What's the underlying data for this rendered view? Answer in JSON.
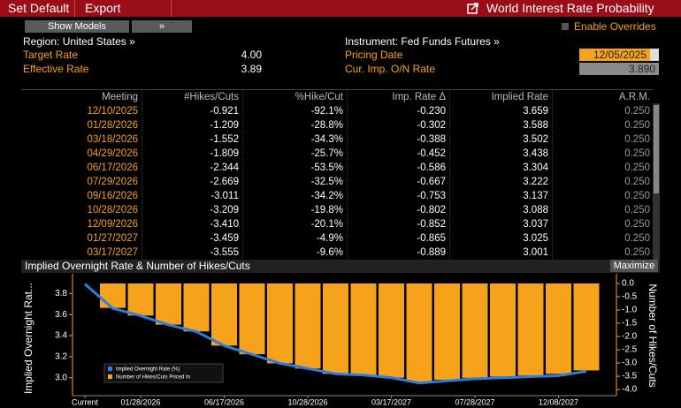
{
  "toolbar": {
    "set_default": "Set Default",
    "export": "Export",
    "title": "World Interest Rate Probability"
  },
  "controls": {
    "show_models": "Show Models",
    "expand": "»",
    "enable_overrides": "Enable Overrides"
  },
  "info": {
    "region": "Region: United States »",
    "target_rate_label": "Target Rate",
    "target_rate": "4.00",
    "effective_rate_label": "Effective Rate",
    "effective_rate": "3.89",
    "instrument": "Instrument: Fed Funds Futures »",
    "pricing_date_label": "Pricing Date",
    "pricing_date": "12/05/2025",
    "cur_imp_label": "Cur. Imp. O/N Rate",
    "cur_imp": "3.890"
  },
  "table": {
    "columns": [
      "Meeting",
      "#Hikes/Cuts",
      "%Hike/Cut",
      "Imp. Rate Δ",
      "Implied Rate",
      "A.R.M."
    ],
    "rows": [
      [
        "12/10/2025",
        "-0.921",
        "-92.1%",
        "-0.230",
        "3.659",
        "0.250"
      ],
      [
        "01/28/2026",
        "-1.209",
        "-28.8%",
        "-0.302",
        "3.588",
        "0.250"
      ],
      [
        "03/18/2026",
        "-1.552",
        "-34.3%",
        "-0.388",
        "3.502",
        "0.250"
      ],
      [
        "04/29/2026",
        "-1.809",
        "-25.7%",
        "-0.452",
        "3.438",
        "0.250"
      ],
      [
        "06/17/2026",
        "-2.344",
        "-53.5%",
        "-0.586",
        "3.304",
        "0.250"
      ],
      [
        "07/29/2026",
        "-2.669",
        "-32.5%",
        "-0.667",
        "3.222",
        "0.250"
      ],
      [
        "09/16/2026",
        "-3.011",
        "-34.2%",
        "-0.753",
        "3.137",
        "0.250"
      ],
      [
        "10/28/2026",
        "-3.209",
        "-19.8%",
        "-0.802",
        "3.088",
        "0.250"
      ],
      [
        "12/09/2026",
        "-3.410",
        "-20.1%",
        "-0.852",
        "3.037",
        "0.250"
      ],
      [
        "01/27/2027",
        "-3.459",
        "-4.9%",
        "-0.865",
        "3.025",
        "0.250"
      ],
      [
        "03/17/2027",
        "-3.555",
        "-9.6%",
        "-0.889",
        "3.001",
        "0.250"
      ]
    ]
  },
  "chart_data": {
    "type": "bar",
    "title": "Implied Overnight Rate & Number of Hikes/Cuts",
    "button": "Maximize",
    "y_label": "Implied Overnight Rat...",
    "y2_label": "Number of Hikes/Cuts",
    "categories": [
      "Current",
      null,
      "01/28/2026",
      null,
      null,
      "06/17/2026",
      null,
      null,
      "10/28/2026",
      null,
      null,
      "03/17/2027",
      null,
      null,
      "07/28/2027",
      null,
      null,
      "12/08/2027",
      null
    ],
    "series": [
      {
        "name": "Implied Overnight Rate (%)",
        "type": "line",
        "color": "#2a7de1",
        "values": [
          3.89,
          3.659,
          3.588,
          3.502,
          3.438,
          3.304,
          3.222,
          3.137,
          3.088,
          3.037,
          3.025,
          3.001,
          2.95,
          2.97,
          2.99,
          3.0,
          3.01,
          3.02,
          3.06
        ]
      },
      {
        "name": "Number of Hikes/Cuts Priced In",
        "type": "bar",
        "axis": "y2",
        "color": "#f7a21b",
        "values": [
          null,
          -0.921,
          -1.209,
          -1.552,
          -1.809,
          -2.344,
          -2.669,
          -3.011,
          -3.209,
          -3.41,
          -3.459,
          -3.555,
          -3.71,
          -3.63,
          -3.56,
          -3.51,
          -3.47,
          -3.41,
          -3.28
        ]
      }
    ],
    "ylim": [
      2.83,
      3.92
    ],
    "yticks": [
      {
        "value": 3,
        "label": "3.0"
      },
      3.2,
      3.4,
      3.6,
      3.8
    ],
    "y2lim": [
      -4.23,
      0.1
    ],
    "y2ticks": [
      {
        "value": 0,
        "label": "0.0"
      },
      -0.5,
      {
        "value": -1,
        "label": "-1.0"
      },
      -1.5,
      {
        "value": -2,
        "label": "-2.0"
      },
      -2.5,
      {
        "value": -3,
        "label": "-3.0"
      },
      -3.5,
      {
        "value": -4,
        "label": "-4.0"
      }
    ]
  }
}
